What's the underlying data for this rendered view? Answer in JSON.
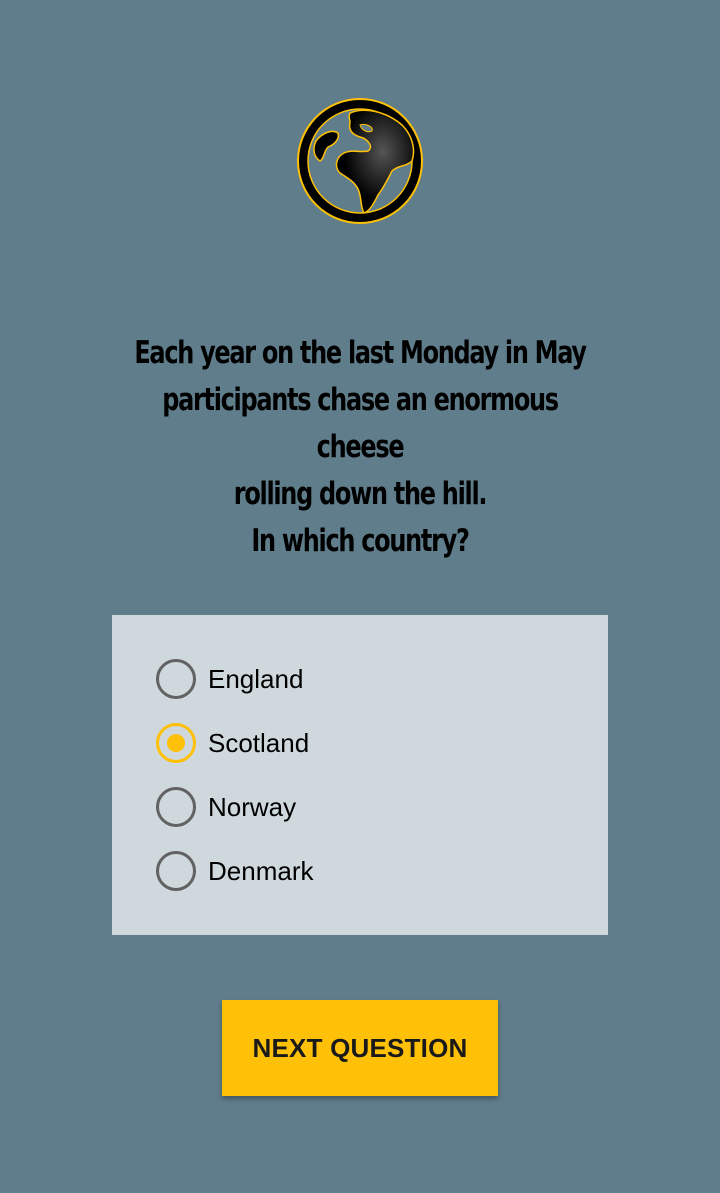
{
  "header": {
    "icon": "globe-icon"
  },
  "question": {
    "line1": "Each year on the last Monday in May",
    "line2": "participants chase an enormous cheese",
    "line3": "rolling down the hill.",
    "line4": "In which country?"
  },
  "options": [
    {
      "label": "England",
      "selected": false
    },
    {
      "label": "Scotland",
      "selected": true
    },
    {
      "label": "Norway",
      "selected": false
    },
    {
      "label": "Denmark",
      "selected": false
    }
  ],
  "next_button": {
    "label": "NEXT QUESTION"
  },
  "colors": {
    "background": "#607d8b",
    "card": "#cfd8dc",
    "accent": "#ffc107",
    "radio_unselected": "#616161"
  }
}
